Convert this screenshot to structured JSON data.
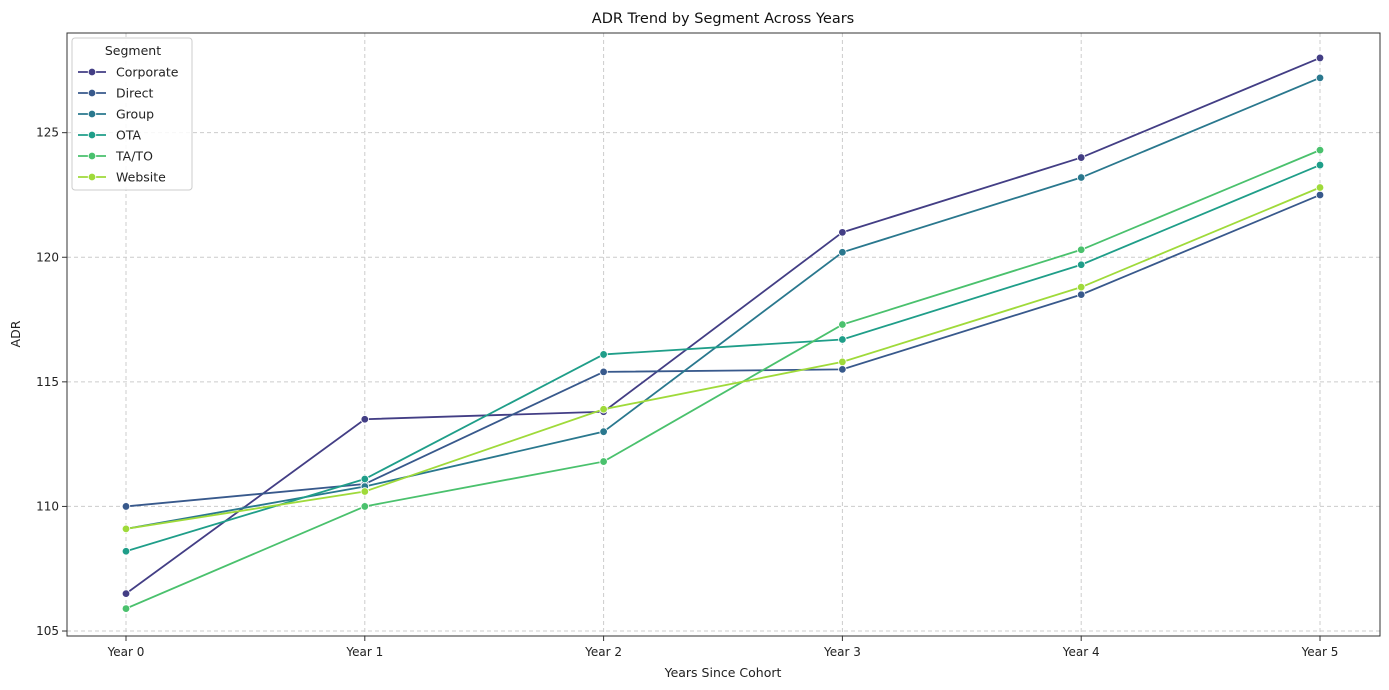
{
  "chart_data": {
    "type": "line",
    "title": "ADR Trend by Segment Across Years",
    "xlabel": "Years Since Cohort",
    "ylabel": "ADR",
    "categories": [
      "Year 0",
      "Year 1",
      "Year 2",
      "Year 3",
      "Year 4",
      "Year 5"
    ],
    "ylim": [
      104.8,
      129.0
    ],
    "yticks": [
      105,
      110,
      115,
      120,
      125
    ],
    "grid": true,
    "legend": {
      "title": "Segment",
      "placement": "top-left"
    },
    "series": [
      {
        "name": "Corporate",
        "color": "#433e85",
        "values": [
          106.5,
          113.5,
          113.8,
          121.0,
          124.0,
          128.0
        ]
      },
      {
        "name": "Direct",
        "color": "#38598c",
        "values": [
          110.0,
          110.9,
          115.4,
          115.5,
          118.5,
          122.5
        ]
      },
      {
        "name": "Group",
        "color": "#2a788e",
        "values": [
          109.1,
          110.8,
          113.0,
          120.2,
          123.2,
          127.2
        ]
      },
      {
        "name": "OTA",
        "color": "#1f9e89",
        "values": [
          108.2,
          111.1,
          116.1,
          116.7,
          119.7,
          123.7
        ]
      },
      {
        "name": "TA/TO",
        "color": "#4ac16d",
        "values": [
          105.9,
          110.0,
          111.8,
          117.3,
          120.3,
          124.3
        ]
      },
      {
        "name": "Website",
        "color": "#9fda3a",
        "values": [
          109.1,
          110.6,
          113.9,
          115.8,
          118.8,
          122.8
        ]
      }
    ]
  }
}
